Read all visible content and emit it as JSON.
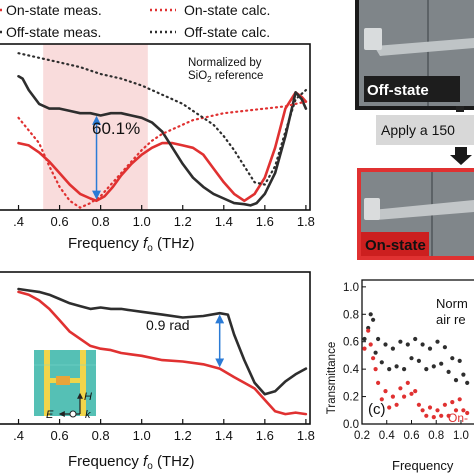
{
  "legend": {
    "on_meas": "On-state meas.",
    "off_meas": "Off-state meas.",
    "on_calc": "On-state calc.",
    "off_calc": "Off-state calc."
  },
  "colors": {
    "on": "#e03131",
    "off": "#2e2e2e",
    "band": "#f9dcdc",
    "arrow": "#2b7bd6"
  },
  "top_chart": {
    "note_line1": "Normalized by",
    "note_line2a": "SiO",
    "note_line2sub": "2",
    "note_line2b": " reference",
    "callout": "60.1%",
    "xlabel_main": "Frequency ",
    "xlabel_var": "f",
    "xlabel_sub": "o",
    "xlabel_unit": " (THz)",
    "xticks": [
      ".4",
      "0.6",
      "0.8",
      "1.0",
      "1.2",
      "1.4",
      "1.6",
      "1.8"
    ]
  },
  "bottom_chart": {
    "callout": "0.9 rad",
    "xlabel_main": "Frequency ",
    "xlabel_var": "f",
    "xlabel_sub": "o",
    "xlabel_unit": " (THz)",
    "xticks": [
      ".4",
      "0.6",
      "0.8",
      "1.0",
      "1.2",
      "1.4",
      "1.6",
      "1.8"
    ],
    "inset_h": "H",
    "inset_e": "E",
    "inset_k": "k"
  },
  "panel_c": {
    "ylabel": "Transmittance",
    "yticks": [
      "1.0",
      "0.8",
      "0.6",
      "0.4",
      "0.2",
      "0.0"
    ],
    "xticks": [
      "0.2",
      "0.4",
      "0.6",
      "0.8",
      "1.0",
      "1"
    ],
    "xlabel": "Frequency",
    "panel_label": "(c)",
    "note_line1": "Norm",
    "note_line2": "air re",
    "on_label": "On-"
  },
  "photos": {
    "off_label": "Off-state",
    "on_label": "On-state",
    "apply_text": "Apply a 150"
  },
  "chart_data": [
    {
      "type": "line",
      "xlabel": "Frequency fo (THz)",
      "xlim": [
        0.4,
        1.8
      ],
      "highlight_band": [
        0.52,
        1.03
      ],
      "annotation": "60.1%",
      "annotation_x": 0.78,
      "series": [
        {
          "name": "On-state meas.",
          "style": "solid",
          "color": "#e03131",
          "x": [
            0.4,
            0.45,
            0.5,
            0.55,
            0.6,
            0.65,
            0.7,
            0.75,
            0.78,
            0.82,
            0.86,
            0.9,
            0.95,
            1.0,
            1.05,
            1.1,
            1.15,
            1.2,
            1.25,
            1.3,
            1.35,
            1.4,
            1.45,
            1.5,
            1.55,
            1.6,
            1.65,
            1.7,
            1.75,
            1.78,
            1.8
          ],
          "y": [
            0.27,
            0.26,
            0.23,
            0.19,
            0.14,
            0.09,
            0.05,
            0.03,
            0.02,
            0.04,
            0.08,
            0.13,
            0.18,
            0.22,
            0.25,
            0.27,
            0.27,
            0.26,
            0.25,
            0.22,
            0.16,
            0.1,
            0.05,
            0.02,
            0.05,
            0.12,
            0.25,
            0.42,
            0.49,
            0.47,
            0.45
          ]
        },
        {
          "name": "Off-state meas.",
          "style": "solid",
          "color": "#2e2e2e",
          "x": [
            0.4,
            0.42,
            0.45,
            0.5,
            0.55,
            0.6,
            0.65,
            0.7,
            0.75,
            0.8,
            0.85,
            0.9,
            0.95,
            1.0,
            1.05,
            1.1,
            1.15,
            1.2,
            1.25,
            1.3,
            1.35,
            1.4,
            1.45,
            1.5,
            1.53,
            1.56,
            1.6,
            1.65,
            1.7,
            1.75,
            1.78,
            1.8
          ],
          "y": [
            0.56,
            0.55,
            0.5,
            0.44,
            0.42,
            0.42,
            0.41,
            0.4,
            0.4,
            0.39,
            0.4,
            0.4,
            0.39,
            0.38,
            0.36,
            0.32,
            0.25,
            0.18,
            0.12,
            0.08,
            0.05,
            0.03,
            0.01,
            0.005,
            0.0,
            0.01,
            0.05,
            0.14,
            0.3,
            0.49,
            0.46,
            0.42
          ]
        },
        {
          "name": "On-state calc.",
          "style": "dotted",
          "color": "#e03131",
          "x": [
            0.4,
            0.5,
            0.55,
            0.6,
            0.65,
            0.7,
            0.75,
            0.8,
            0.85,
            0.9,
            0.95,
            1.0,
            1.05,
            1.1,
            1.15,
            1.2,
            1.25,
            1.3,
            1.4,
            1.5,
            1.6,
            1.7,
            1.75,
            1.8
          ],
          "y": [
            0.38,
            0.27,
            0.17,
            0.08,
            0.02,
            -0.01,
            0.01,
            0.04,
            0.09,
            0.14,
            0.19,
            0.24,
            0.28,
            0.31,
            0.33,
            0.35,
            0.37,
            0.38,
            0.4,
            0.41,
            0.42,
            0.43,
            0.44,
            0.45
          ]
        },
        {
          "name": "Off-state calc.",
          "style": "dotted",
          "color": "#2e2e2e",
          "x": [
            0.4,
            0.5,
            0.6,
            0.7,
            0.8,
            0.9,
            1.0,
            1.05,
            1.1,
            1.15,
            1.2,
            1.25,
            1.3,
            1.35,
            1.4,
            1.45,
            1.5,
            1.55,
            1.6,
            1.65,
            1.7,
            1.75,
            1.8
          ],
          "y": [
            0.66,
            0.64,
            0.62,
            0.6,
            0.57,
            0.55,
            0.52,
            0.5,
            0.48,
            0.46,
            0.44,
            0.41,
            0.38,
            0.35,
            0.3,
            0.24,
            0.17,
            0.1,
            0.09,
            0.17,
            0.32,
            0.46,
            0.5
          ]
        }
      ]
    },
    {
      "type": "line",
      "xlabel": "Frequency fo (THz)",
      "xlim": [
        0.4,
        1.8
      ],
      "annotation": "0.9 rad",
      "annotation_x": 1.38,
      "series": [
        {
          "name": "On-state",
          "style": "solid",
          "color": "#e03131",
          "x": [
            0.4,
            0.45,
            0.5,
            0.55,
            0.6,
            0.65,
            0.7,
            0.75,
            0.8,
            0.85,
            0.9,
            0.95,
            1.0,
            1.1,
            1.2,
            1.3,
            1.38,
            1.45,
            1.5,
            1.55,
            1.6,
            1.65,
            1.7,
            1.75,
            1.8
          ],
          "y": [
            0.88,
            0.86,
            0.82,
            0.76,
            0.68,
            0.6,
            0.55,
            0.5,
            0.48,
            0.47,
            0.45,
            0.44,
            0.43,
            0.4,
            0.39,
            0.37,
            0.34,
            0.28,
            0.24,
            0.2,
            0.12,
            0.04,
            0.02,
            0.03,
            0.02
          ]
        },
        {
          "name": "Off-state",
          "style": "solid",
          "color": "#2e2e2e",
          "x": [
            0.4,
            0.45,
            0.5,
            0.55,
            0.6,
            0.65,
            0.7,
            0.75,
            0.8,
            0.85,
            0.9,
            0.95,
            1.0,
            1.1,
            1.2,
            1.3,
            1.38,
            1.42,
            1.45,
            1.5,
            1.55,
            1.6,
            1.65,
            1.7,
            1.75,
            1.8
          ],
          "y": [
            0.9,
            0.89,
            0.88,
            0.86,
            0.83,
            0.8,
            0.78,
            0.76,
            0.77,
            0.76,
            0.76,
            0.75,
            0.74,
            0.72,
            0.7,
            0.71,
            0.73,
            0.72,
            0.58,
            0.4,
            0.24,
            0.16,
            0.18,
            0.25,
            0.3,
            0.34
          ]
        }
      ]
    },
    {
      "type": "scatter",
      "panel": "(c)",
      "ylabel": "Transmittance",
      "xlim": [
        0.2,
        1.1
      ],
      "ylim": [
        0.0,
        1.0
      ],
      "series": [
        {
          "name": "Off-state",
          "color": "#2e2e2e",
          "x": [
            0.22,
            0.25,
            0.27,
            0.29,
            0.31,
            0.33,
            0.36,
            0.39,
            0.42,
            0.45,
            0.48,
            0.51,
            0.54,
            0.57,
            0.6,
            0.63,
            0.66,
            0.69,
            0.72,
            0.75,
            0.78,
            0.81,
            0.84,
            0.87,
            0.9,
            0.93,
            0.96,
            0.99,
            1.02,
            1.05
          ],
          "y": [
            0.62,
            0.7,
            0.8,
            0.76,
            0.52,
            0.62,
            0.45,
            0.58,
            0.4,
            0.55,
            0.42,
            0.6,
            0.4,
            0.58,
            0.48,
            0.62,
            0.46,
            0.58,
            0.4,
            0.55,
            0.42,
            0.6,
            0.44,
            0.56,
            0.38,
            0.48,
            0.32,
            0.46,
            0.36,
            0.3
          ]
        },
        {
          "name": "On-state",
          "color": "#e03131",
          "x": [
            0.22,
            0.25,
            0.27,
            0.29,
            0.31,
            0.33,
            0.36,
            0.39,
            0.42,
            0.45,
            0.48,
            0.51,
            0.54,
            0.57,
            0.6,
            0.63,
            0.66,
            0.69,
            0.72,
            0.75,
            0.78,
            0.81,
            0.84,
            0.87,
            0.9,
            0.93,
            0.96,
            0.99,
            1.02,
            1.05
          ],
          "y": [
            0.55,
            0.68,
            0.58,
            0.48,
            0.4,
            0.3,
            0.18,
            0.24,
            0.12,
            0.2,
            0.14,
            0.26,
            0.2,
            0.3,
            0.22,
            0.24,
            0.14,
            0.1,
            0.06,
            0.12,
            0.05,
            0.1,
            0.06,
            0.14,
            0.06,
            0.16,
            0.1,
            0.18,
            0.1,
            0.08
          ]
        }
      ]
    }
  ]
}
